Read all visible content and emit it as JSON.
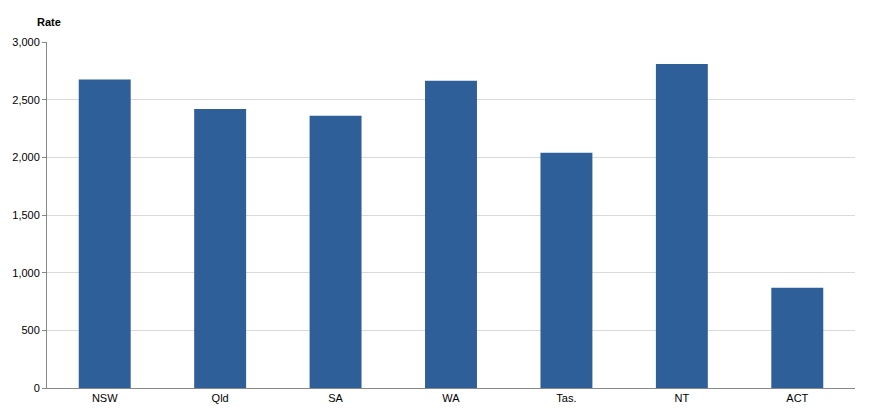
{
  "chart_data": {
    "type": "bar",
    "ylabel": "Rate",
    "categories": [
      "NSW",
      "Qld",
      "SA",
      "WA",
      "Tas.",
      "NT",
      "ACT"
    ],
    "values": [
      2675,
      2420,
      2360,
      2665,
      2040,
      2810,
      870
    ],
    "color": "#2e5f99",
    "ylim": [
      0,
      3000
    ],
    "yticks": [
      0,
      500,
      {
        "value": 1000,
        "label": "1,000"
      },
      {
        "value": 1500,
        "label": "1,500"
      },
      {
        "value": 2000,
        "label": "2,000"
      },
      {
        "value": 2500,
        "label": "2,500"
      },
      {
        "value": 3000,
        "label": "3,000"
      }
    ],
    "grid": true
  }
}
